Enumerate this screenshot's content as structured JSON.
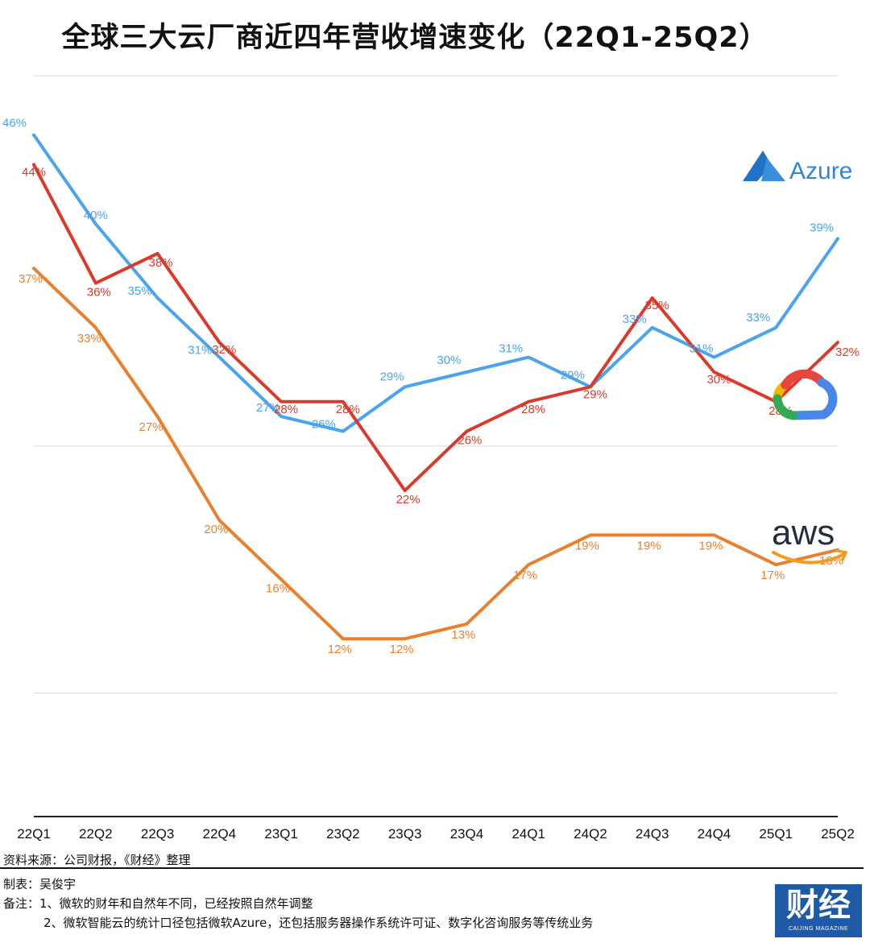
{
  "title": "全球三大云厂商近四年营收增速变化（22Q1-25Q2）",
  "source": "资料来源：公司财报，《财经》整理",
  "maker": "制表：吴俊宇",
  "note1": "备注：1、微软的财年和自然年不同，已经按照自然年调整",
  "note2": "2、微软智能云的统计口径包括微软Azure，还包括服务器操作系统许可证、数字化咨询服务等传统业务",
  "brand": {
    "name": "财经",
    "sub": "CAIJING MAGAZINE"
  },
  "logos": {
    "azure": "Azure",
    "aws": "aws",
    "google": "google-cloud-logo"
  },
  "chart_data": {
    "type": "line",
    "title": "全球三大云厂商近四年营收增速变化（22Q1-25Q2）",
    "xlabel": "",
    "ylabel": "",
    "categories": [
      "22Q1",
      "22Q2",
      "22Q3",
      "22Q4",
      "23Q1",
      "23Q2",
      "23Q3",
      "23Q4",
      "24Q1",
      "24Q2",
      "24Q3",
      "24Q4",
      "25Q1",
      "25Q2"
    ],
    "series": [
      {
        "name": "Azure",
        "color": "#4aa3ee",
        "values": [
          46,
          40,
          35,
          31,
          27,
          26,
          29,
          30,
          31,
          29,
          33,
          31,
          33,
          39
        ],
        "labels": [
          "46%",
          "40%",
          "35%",
          "31%",
          "27%",
          "26%",
          "29%",
          "30%",
          "31%",
          "29%",
          "33%",
          "31%",
          "33%",
          "39%"
        ]
      },
      {
        "name": "Google Cloud",
        "color": "#d93a2b",
        "values": [
          44,
          36,
          38,
          32,
          28,
          28,
          22,
          26,
          28,
          29,
          35,
          30,
          28,
          32
        ],
        "labels": [
          "44%",
          "36%",
          "38%",
          "32%",
          "28%",
          "28%",
          "22%",
          "26%",
          "28%",
          "29%",
          "35%",
          "30%",
          "28%",
          "32%"
        ]
      },
      {
        "name": "AWS",
        "color": "#e8812e",
        "values": [
          37,
          33,
          27,
          20,
          16,
          12,
          12,
          13,
          17,
          19,
          19,
          19,
          17,
          18
        ],
        "labels": [
          "37%",
          "33%",
          "27%",
          "20%",
          "16%",
          "12%",
          "12%",
          "13%",
          "17%",
          "19%",
          "19%",
          "19%",
          "17%",
          "18%"
        ]
      }
    ],
    "ylim": [
      0,
      50
    ],
    "grid": true,
    "legend": "logos at right"
  }
}
